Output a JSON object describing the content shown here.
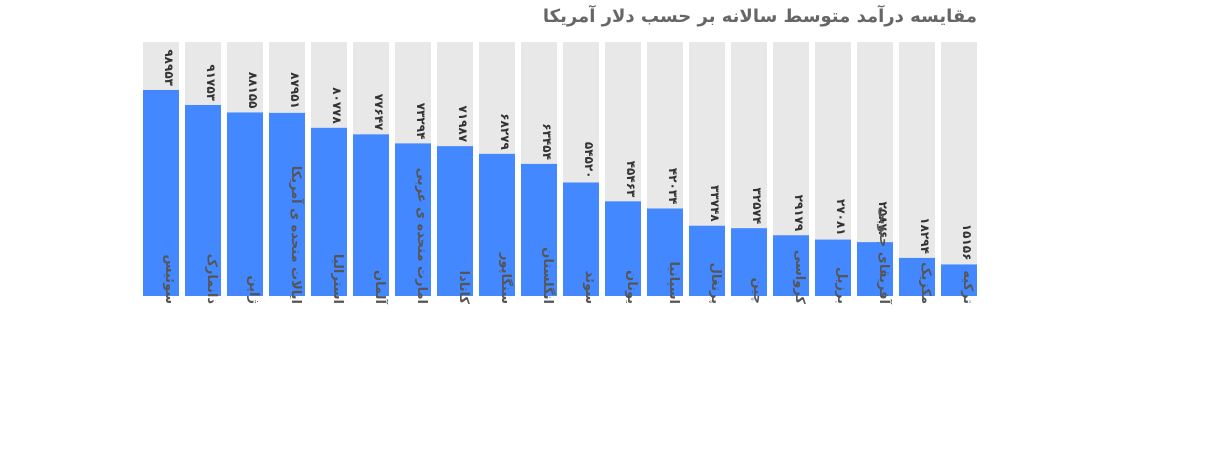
{
  "chart_data": {
    "type": "bar",
    "title": "مقایسه درآمد متوسط سالانه بر حسب دلار آمریکا",
    "categories": [
      "سوئیس",
      "دانمارک",
      "ژاپن",
      "ایالات متحده ی آمریکا",
      "استرالیا",
      "آلمان",
      "امارت متحده ی عربی",
      "کانادا",
      "سنگاپور",
      "انگلستان",
      "سوئد",
      "یونان",
      "اسپانیا",
      "پرتغال",
      "چین",
      "کرواسی",
      "برزیل",
      "آفریقای جنوبی",
      "مکزیک",
      "ترکیه"
    ],
    "values": [
      98953,
      91753,
      88155,
      87951,
      80778,
      77647,
      73294,
      71987,
      68279,
      63454,
      54520,
      45463,
      42034,
      33748,
      32574,
      29179,
      27081,
      25876,
      18294,
      15156
    ],
    "value_labels": [
      "۹۸۹۵۳",
      "۹۱۷۵۳",
      "۸۸۱۵۵",
      "۸۷۹۵۱",
      "۸۰۷۷۸",
      "۷۷۶۴۷",
      "۷۳۲۹۴",
      "۷۱۹۸۷",
      "۶۸۲۷۹",
      "۶۳۴۵۴",
      "۵۴۵۲۰",
      "۴۵۴۶۳",
      "۴۲۰۳۴",
      "۳۳۷۴۸",
      "۳۲۵۷۴",
      "۲۹۱۷۹",
      "۲۷۰۸۱",
      "۲۵۸۷۶",
      "۱۸۲۹۴",
      "۱۵۱۵۶"
    ],
    "ylim": [
      0,
      122000
    ],
    "xlabel": "",
    "ylabel": "",
    "grid": false,
    "colors": {
      "bar": "#4488ff",
      "track": "#e8e8e8",
      "title": "#666666",
      "value_text": "#333333",
      "category_text": "#555555"
    }
  }
}
